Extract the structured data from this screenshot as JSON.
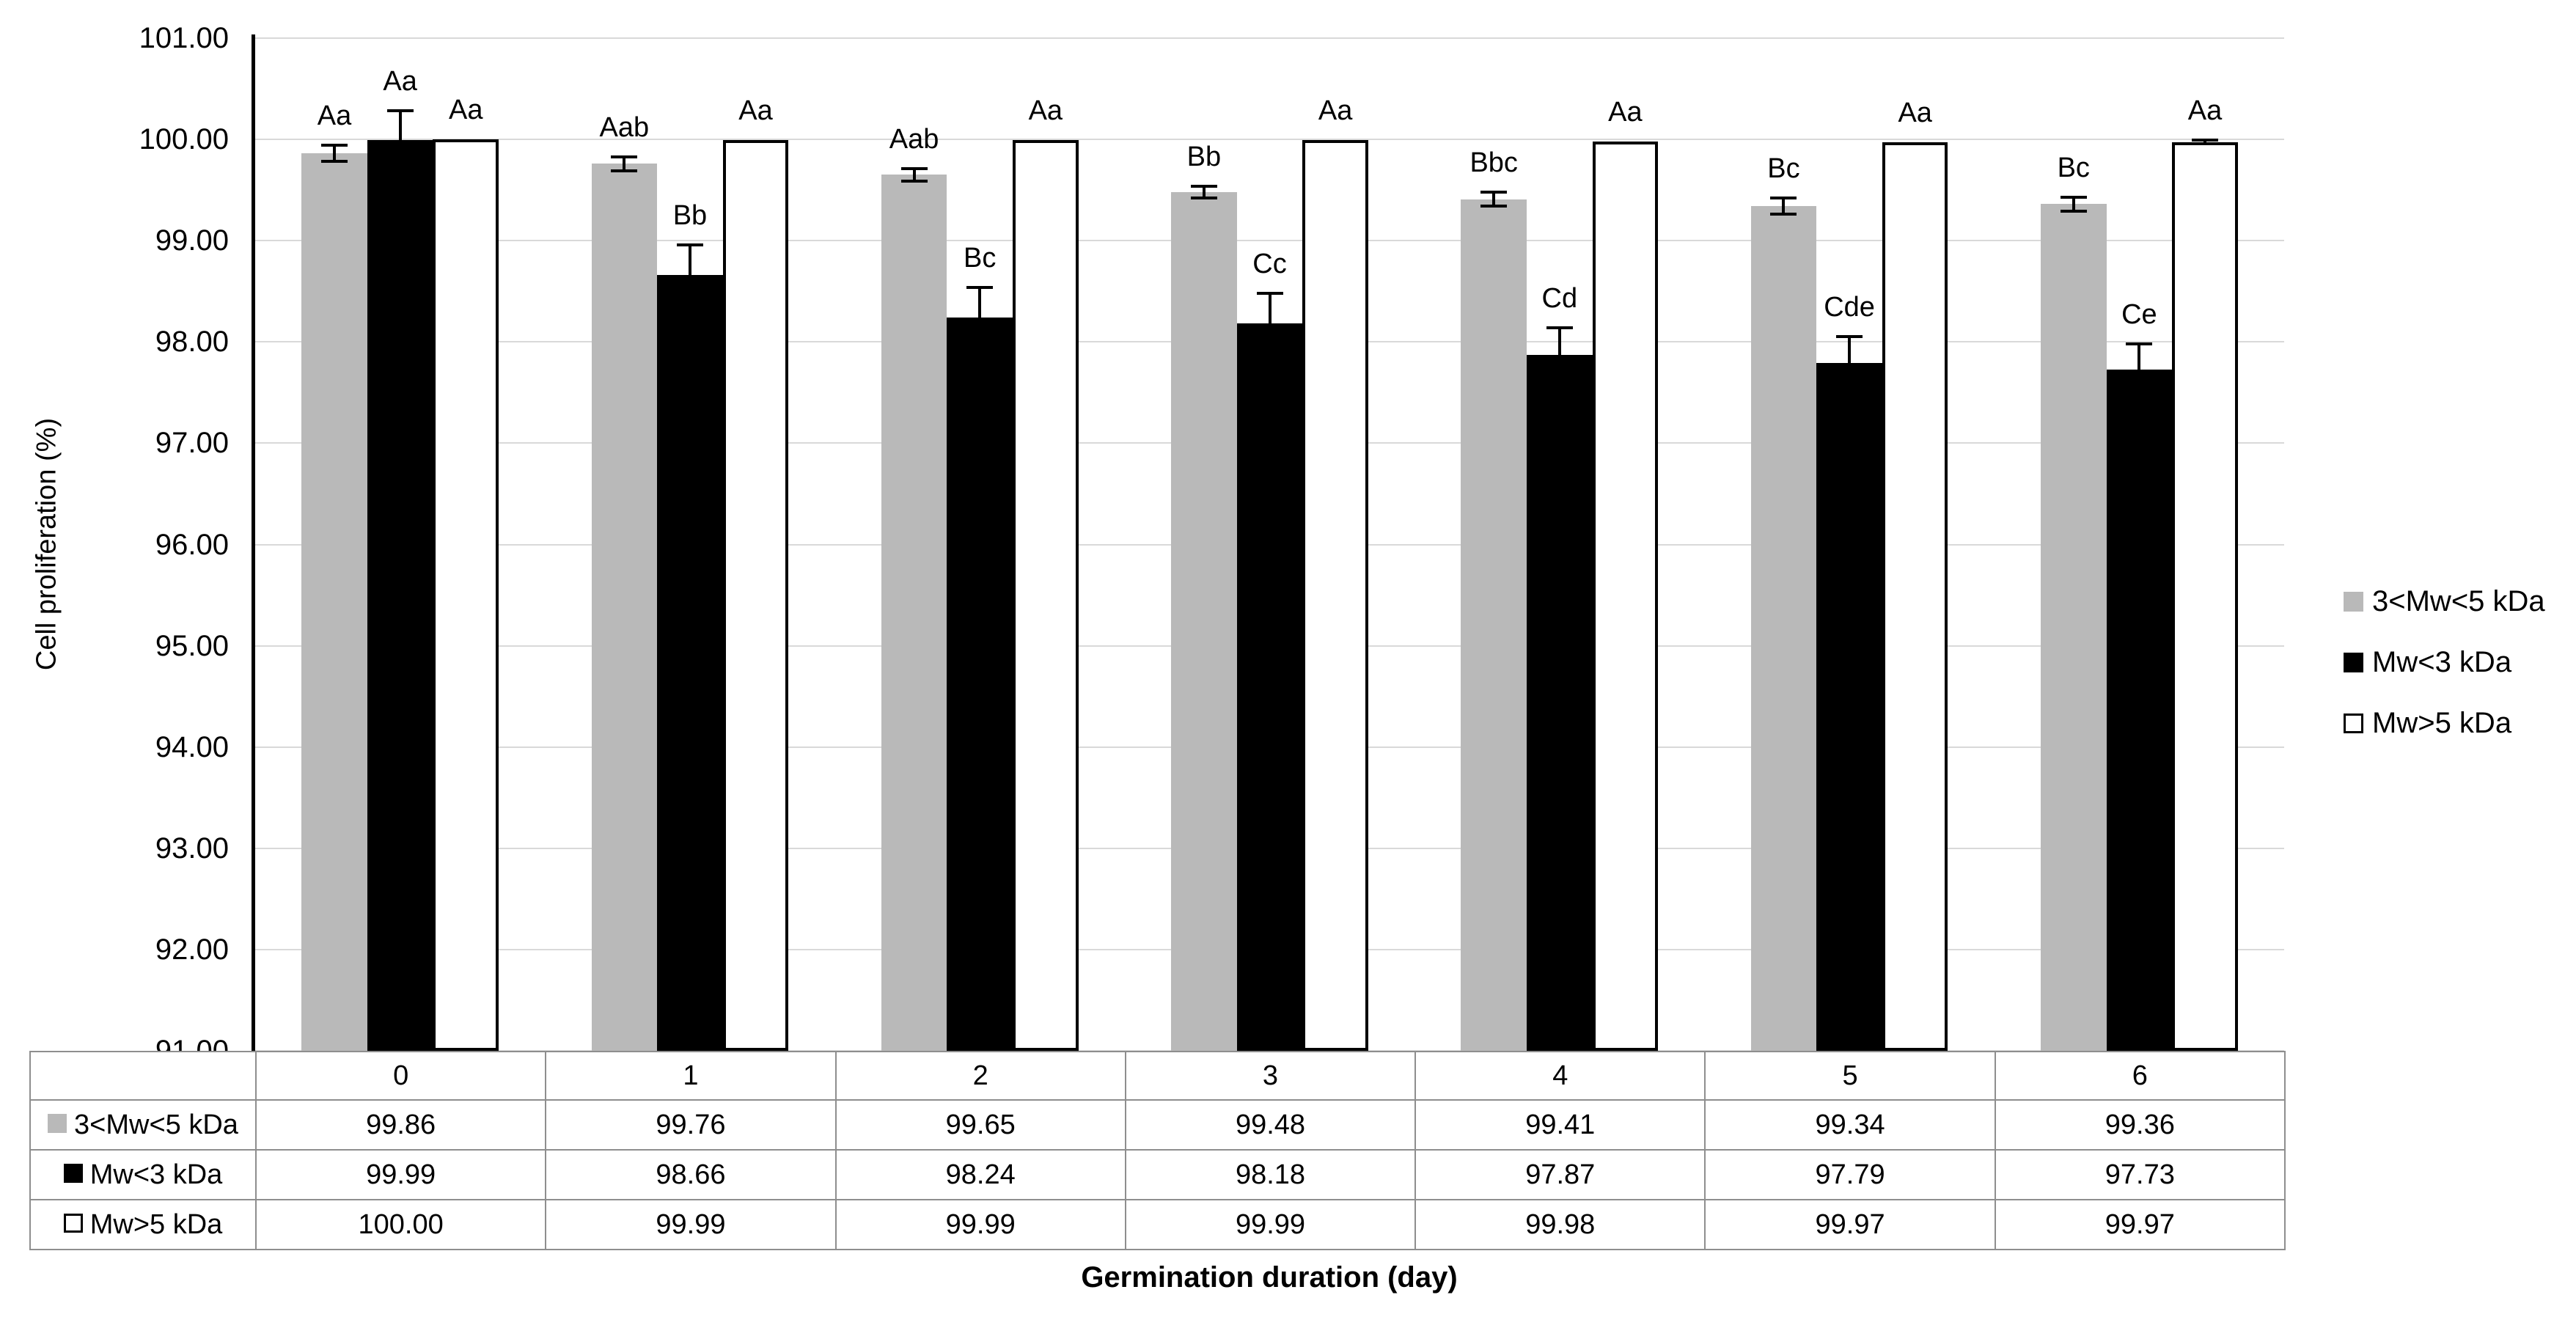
{
  "page": {
    "background": "#ffffff"
  },
  "chart_data": {
    "type": "bar",
    "title": "",
    "xlabel": "Germination duration (day)",
    "ylabel": "Cell proliferation (%)",
    "ylim": [
      91,
      101
    ],
    "ytick_step": 1,
    "ytick_decimals": 2,
    "grid": true,
    "legend_position": "right",
    "categories": [
      "0",
      "1",
      "2",
      "3",
      "4",
      "5",
      "6"
    ],
    "series": [
      {
        "name": "3<Mw<5 kDa",
        "color": "#b9b9b9",
        "err_style": "both",
        "values": [
          99.86,
          99.76,
          99.65,
          99.48,
          99.41,
          99.34,
          99.36
        ],
        "errors": [
          0.08,
          0.07,
          0.06,
          0.06,
          0.07,
          0.08,
          0.07
        ],
        "point_labels": [
          "Aa",
          "Aab",
          "Aab",
          "Bb",
          "Bbc",
          "Bc",
          "Bc"
        ]
      },
      {
        "name": "Mw<3 kDa",
        "color": "#000000",
        "err_style": "up",
        "values": [
          99.99,
          98.66,
          98.24,
          98.18,
          97.87,
          97.79,
          97.73
        ],
        "errors": [
          0.29,
          0.3,
          0.3,
          0.3,
          0.27,
          0.26,
          0.25
        ],
        "point_labels": [
          "Aa",
          "Bb",
          "Bc",
          "Cc",
          "Cd",
          "Cde",
          "Ce"
        ]
      },
      {
        "name": "Mw>5 kDa",
        "color": "#ffffff",
        "border_color": "#000000",
        "err_style": "up",
        "values": [
          100.0,
          99.99,
          99.99,
          99.99,
          99.98,
          99.97,
          99.97
        ],
        "errors": [
          0,
          0,
          0,
          0,
          0,
          0,
          0.02
        ],
        "point_labels": [
          "Aa",
          "Aa",
          "Aa",
          "Aa",
          "Aa",
          "Aa",
          "Aa"
        ]
      }
    ],
    "data_table": {
      "row_labels": [
        "3<Mw<5 kDa",
        "Mw<3 kDa",
        "Mw>5 kDa"
      ],
      "values": [
        [
          "99.86",
          "99.76",
          "99.65",
          "99.48",
          "99.41",
          "99.34",
          "99.36"
        ],
        [
          "99.99",
          "98.66",
          "98.24",
          "98.18",
          "97.87",
          "97.79",
          "97.73"
        ],
        [
          "100.00",
          "99.99",
          "99.99",
          "99.99",
          "99.98",
          "99.97",
          "99.97"
        ]
      ]
    },
    "colors": {
      "gridline": "#d9d9d9",
      "axis": "#000000",
      "table_border": "#8e8e8e"
    }
  }
}
